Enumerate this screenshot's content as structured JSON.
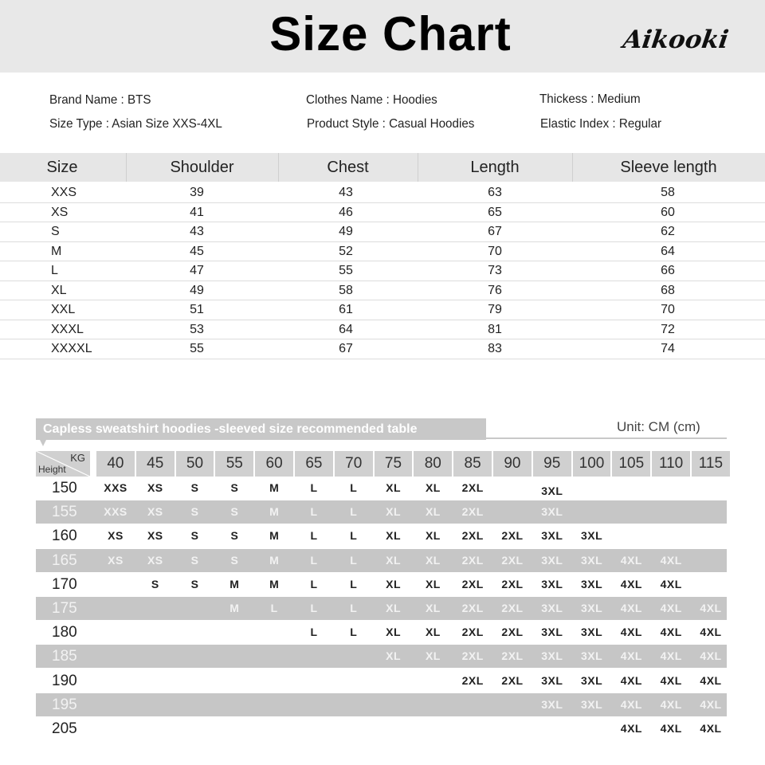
{
  "header": {
    "title": "Size Chart",
    "brand_logo": "Aikooki"
  },
  "info": {
    "brand_name": "Brand Name : BTS",
    "size_type": "Size Type : Asian Size XXS-4XL",
    "clothes_name": "Clothes Name : Hoodies",
    "product_style": "Product Style : Casual Hoodies",
    "thickness": "Thickess : Medium",
    "elastic_index": "Elastic Index : Regular"
  },
  "size_table": {
    "columns": [
      "Size",
      "Shoulder",
      "Chest",
      "Length",
      "Sleeve length"
    ],
    "rows": [
      [
        "XXS",
        "39",
        "43",
        "63",
        "58"
      ],
      [
        "XS",
        "41",
        "46",
        "65",
        "60"
      ],
      [
        "S",
        "43",
        "49",
        "67",
        "62"
      ],
      [
        "M",
        "45",
        "52",
        "70",
        "64"
      ],
      [
        "L",
        "47",
        "55",
        "73",
        "66"
      ],
      [
        "XL",
        "49",
        "58",
        "76",
        "68"
      ],
      [
        "XXL",
        "51",
        "61",
        "79",
        "70"
      ],
      [
        "XXXL",
        "53",
        "64",
        "81",
        "72"
      ],
      [
        "XXXXL",
        "55",
        "67",
        "83",
        "74"
      ]
    ]
  },
  "recommend_table": {
    "title": "Capless sweatshirt hoodies -sleeved size recommended table",
    "unit": "Unit: CM (cm)",
    "corner_kg": "KG",
    "corner_height": "Height",
    "weights": [
      "40",
      "45",
      "50",
      "55",
      "60",
      "65",
      "70",
      "75",
      "80",
      "85",
      "90",
      "95",
      "100",
      "105",
      "110",
      "115"
    ],
    "rows": [
      {
        "height": "150",
        "sizes": [
          "XXS",
          "XS",
          "S",
          "S",
          "M",
          "L",
          "L",
          "XL",
          "XL",
          "2XL",
          "",
          "3XL",
          "",
          "",
          "",
          ""
        ]
      },
      {
        "height": "155",
        "sizes": [
          "XXS",
          "XS",
          "S",
          "S",
          "M",
          "L",
          "L",
          "XL",
          "XL",
          "2XL",
          "",
          "3XL",
          "",
          "",
          "",
          ""
        ]
      },
      {
        "height": "160",
        "sizes": [
          "XS",
          "XS",
          "S",
          "S",
          "M",
          "L",
          "L",
          "XL",
          "XL",
          "2XL",
          "2XL",
          "3XL",
          "3XL",
          "",
          "",
          ""
        ]
      },
      {
        "height": "165",
        "sizes": [
          "XS",
          "XS",
          "S",
          "S",
          "M",
          "L",
          "L",
          "XL",
          "XL",
          "2XL",
          "2XL",
          "3XL",
          "3XL",
          "4XL",
          "4XL",
          ""
        ]
      },
      {
        "height": "170",
        "sizes": [
          "",
          "S",
          "S",
          "M",
          "M",
          "L",
          "L",
          "XL",
          "XL",
          "2XL",
          "2XL",
          "3XL",
          "3XL",
          "4XL",
          "4XL",
          ""
        ]
      },
      {
        "height": "175",
        "sizes": [
          "",
          "",
          "",
          "M",
          "L",
          "L",
          "L",
          "XL",
          "XL",
          "2XL",
          "2XL",
          "3XL",
          "3XL",
          "4XL",
          "4XL",
          "4XL"
        ]
      },
      {
        "height": "180",
        "sizes": [
          "",
          "",
          "",
          "",
          "",
          "L",
          "L",
          "XL",
          "XL",
          "2XL",
          "2XL",
          "3XL",
          "3XL",
          "4XL",
          "4XL",
          "4XL"
        ]
      },
      {
        "height": "185",
        "sizes": [
          "",
          "",
          "",
          "",
          "",
          "",
          "",
          "XL",
          "XL",
          "2XL",
          "2XL",
          "3XL",
          "3XL",
          "4XL",
          "4XL",
          "4XL"
        ]
      },
      {
        "height": "190",
        "sizes": [
          "",
          "",
          "",
          "",
          "",
          "",
          "",
          "",
          "",
          "2XL",
          "2XL",
          "3XL",
          "3XL",
          "4XL",
          "4XL",
          "4XL"
        ]
      },
      {
        "height": "195",
        "sizes": [
          "",
          "",
          "",
          "",
          "",
          "",
          "",
          "",
          "",
          "",
          "",
          "3XL",
          "3XL",
          "4XL",
          "4XL",
          "4XL"
        ]
      },
      {
        "height": "205",
        "sizes": [
          "",
          "",
          "",
          "",
          "",
          "",
          "",
          "",
          "",
          "",
          "",
          "",
          "",
          "4XL",
          "4XL",
          "4XL"
        ]
      }
    ]
  },
  "colors": {
    "header_bg": "#e8e8e8",
    "table_header_bg": "#e6e6e6",
    "stripe_gray": "#c6c6c6",
    "weight_header_bg": "#d0d0d0"
  }
}
